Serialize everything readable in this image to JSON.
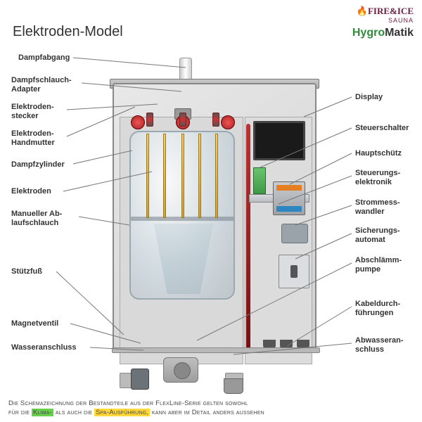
{
  "logos": {
    "fire_ice": "FIRE&ICE",
    "sauna": "SAUNA",
    "hygro": "Hygro",
    "matik": "Matik"
  },
  "title": "Elektroden-Model",
  "labels_left": {
    "dampfabgang": "Dampfabgang",
    "adapter": "Dampfschlauch-\nAdapter",
    "stecker": "Elektroden-\nstecker",
    "handmutter": "Elektroden-\nHandmutter",
    "zylinder": "Dampfzylinder",
    "elektroden": "Elektroden",
    "ablauf": "Manueller Ab-\nlaufschlauch",
    "stuetzfuss": "Stützfuß",
    "magnetventil": "Magnetventil",
    "wasseranschluss": "Wasseranschluss"
  },
  "labels_right": {
    "display": "Display",
    "steuerschalter": "Steuerschalter",
    "hauptschuetz": "Hauptschütz",
    "elektronik": "Steuerungs-\nelektronik",
    "strommess": "Strommess-\nwandler",
    "sicherung": "Sicherungs-\nautomat",
    "pumpe": "Abschlämm-\npumpe",
    "kabel": "Kabeldurch-\nführungen",
    "abwasser": "Abwasseran-\nschluss"
  },
  "footer": {
    "line1": "Die Schemazeichnung der Bestandteile aus der FlexLine-Serie gelten sowohl",
    "line2a": "für die ",
    "klima": "Klima-",
    "line2b": " als auch die ",
    "spa": "Spa-Ausführung,",
    "line2c": " kann aber im Detail anders aussehen"
  },
  "colors": {
    "title": "#333333",
    "hygro_green": "#2e8b3e",
    "fire_maroon": "#6b1e3e",
    "leader": "#777777",
    "hl_green": "#66d24a",
    "hl_yellow": "#ffd83a"
  }
}
